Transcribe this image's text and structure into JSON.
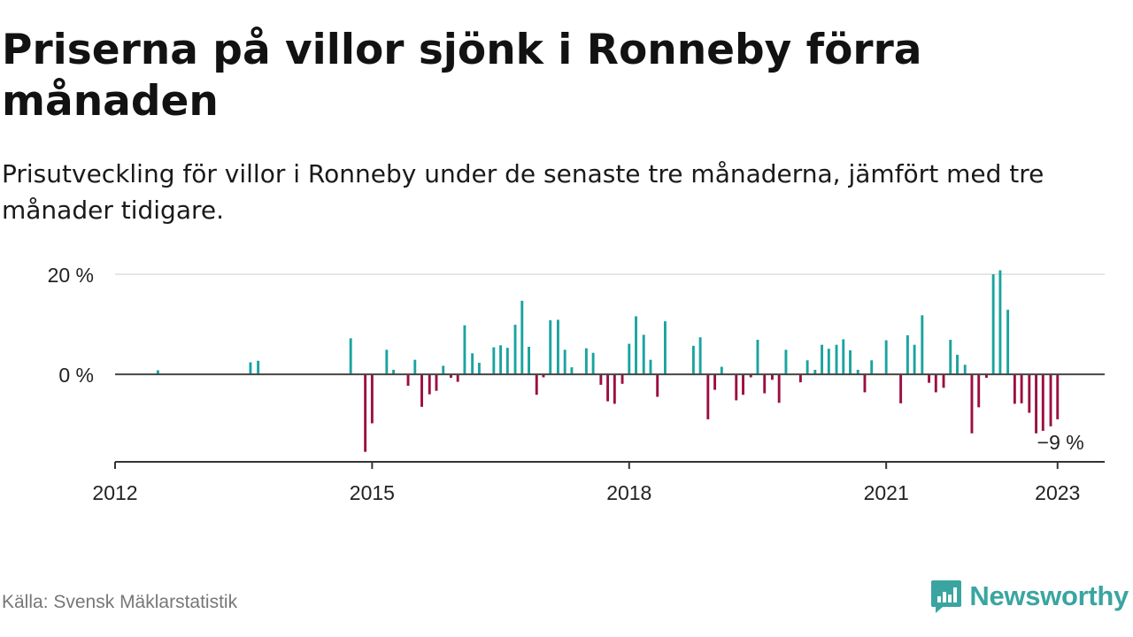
{
  "title": "Priserna på villor sjönk i Ronneby förra månaden",
  "subtitle": "Prisutveckling för villor i Ronneby under de senaste tre månaderna, jämfört med tre månader tidigare.",
  "source": "Källa: Svensk Mäklarstatistik",
  "brand": {
    "name": "Newsworthy",
    "icon": "newsworthy-logo-icon",
    "color": "#3aa5a0"
  },
  "colors": {
    "positive": "#1aa3a0",
    "negative": "#9c0e41",
    "axis": "#333333",
    "grid": "#dddddd"
  },
  "chart_data": {
    "type": "bar",
    "title": "",
    "xlabel": "",
    "ylabel": "",
    "xlim": [
      2012.0,
      2023.55
    ],
    "ylim": [
      -17.5,
      20
    ],
    "grid": true,
    "yticks": [
      {
        "value": 20,
        "label": "20 %"
      },
      {
        "value": 0,
        "label": "0 %"
      }
    ],
    "xticks": [
      {
        "value": 2012,
        "label": "2012"
      },
      {
        "value": 2015,
        "label": "2015"
      },
      {
        "value": 2018,
        "label": "2018"
      },
      {
        "value": 2021,
        "label": "2021"
      },
      {
        "value": 2023,
        "label": "2023"
      }
    ],
    "annotation": {
      "x": 2023.0,
      "y": -9,
      "label": "−9 %"
    },
    "x": [
      2012.5,
      2013.58,
      2013.67,
      2014.75,
      2014.92,
      2015.0,
      2015.17,
      2015.25,
      2015.42,
      2015.5,
      2015.58,
      2015.67,
      2015.75,
      2015.83,
      2015.92,
      2016.0,
      2016.08,
      2016.17,
      2016.25,
      2016.42,
      2016.5,
      2016.58,
      2016.67,
      2016.75,
      2016.83,
      2016.92,
      2017.0,
      2017.08,
      2017.17,
      2017.25,
      2017.33,
      2017.5,
      2017.58,
      2017.67,
      2017.75,
      2017.83,
      2017.92,
      2018.0,
      2018.08,
      2018.17,
      2018.25,
      2018.33,
      2018.42,
      2018.75,
      2018.83,
      2018.92,
      2019.0,
      2019.08,
      2019.25,
      2019.33,
      2019.42,
      2019.5,
      2019.58,
      2019.67,
      2019.75,
      2019.83,
      2020.0,
      2020.08,
      2020.17,
      2020.25,
      2020.33,
      2020.42,
      2020.5,
      2020.58,
      2020.67,
      2020.75,
      2020.83,
      2021.0,
      2021.17,
      2021.25,
      2021.33,
      2021.42,
      2021.5,
      2021.58,
      2021.67,
      2021.75,
      2021.83,
      2021.92,
      2022.0,
      2022.08,
      2022.17,
      2022.25,
      2022.33,
      2022.42,
      2022.5,
      2022.58,
      2022.67,
      2022.75,
      2022.83,
      2022.92,
      2023.0
    ],
    "values": [
      0.8,
      2.4,
      2.7,
      7.2,
      -15.5,
      -9.8,
      4.9,
      0.9,
      -2.3,
      2.9,
      -6.5,
      -4.0,
      -3.3,
      1.7,
      -0.7,
      -1.5,
      9.8,
      4.2,
      2.3,
      5.4,
      5.8,
      5.3,
      9.9,
      14.7,
      5.5,
      -4.1,
      -0.6,
      10.8,
      10.9,
      4.9,
      1.4,
      5.2,
      4.3,
      -2.1,
      -5.4,
      -5.9,
      -1.9,
      6.1,
      11.6,
      7.9,
      2.9,
      -4.5,
      10.6,
      5.7,
      7.4,
      -9.0,
      -3.1,
      1.5,
      -5.2,
      -4.1,
      -0.6,
      6.9,
      -3.8,
      -1.1,
      -5.7,
      4.9,
      -1.6,
      2.8,
      0.9,
      5.9,
      5.1,
      5.9,
      7.0,
      4.8,
      0.9,
      -3.6,
      2.8,
      6.8,
      -5.8,
      7.8,
      5.9,
      11.8,
      -1.7,
      -3.6,
      -2.7,
      6.9,
      3.9,
      1.9,
      -11.8,
      -6.6,
      -0.7,
      20.0,
      20.8,
      12.9,
      -5.9,
      -5.8,
      -7.7,
      -11.8,
      -11.3,
      -10.4,
      -9.0
    ]
  }
}
